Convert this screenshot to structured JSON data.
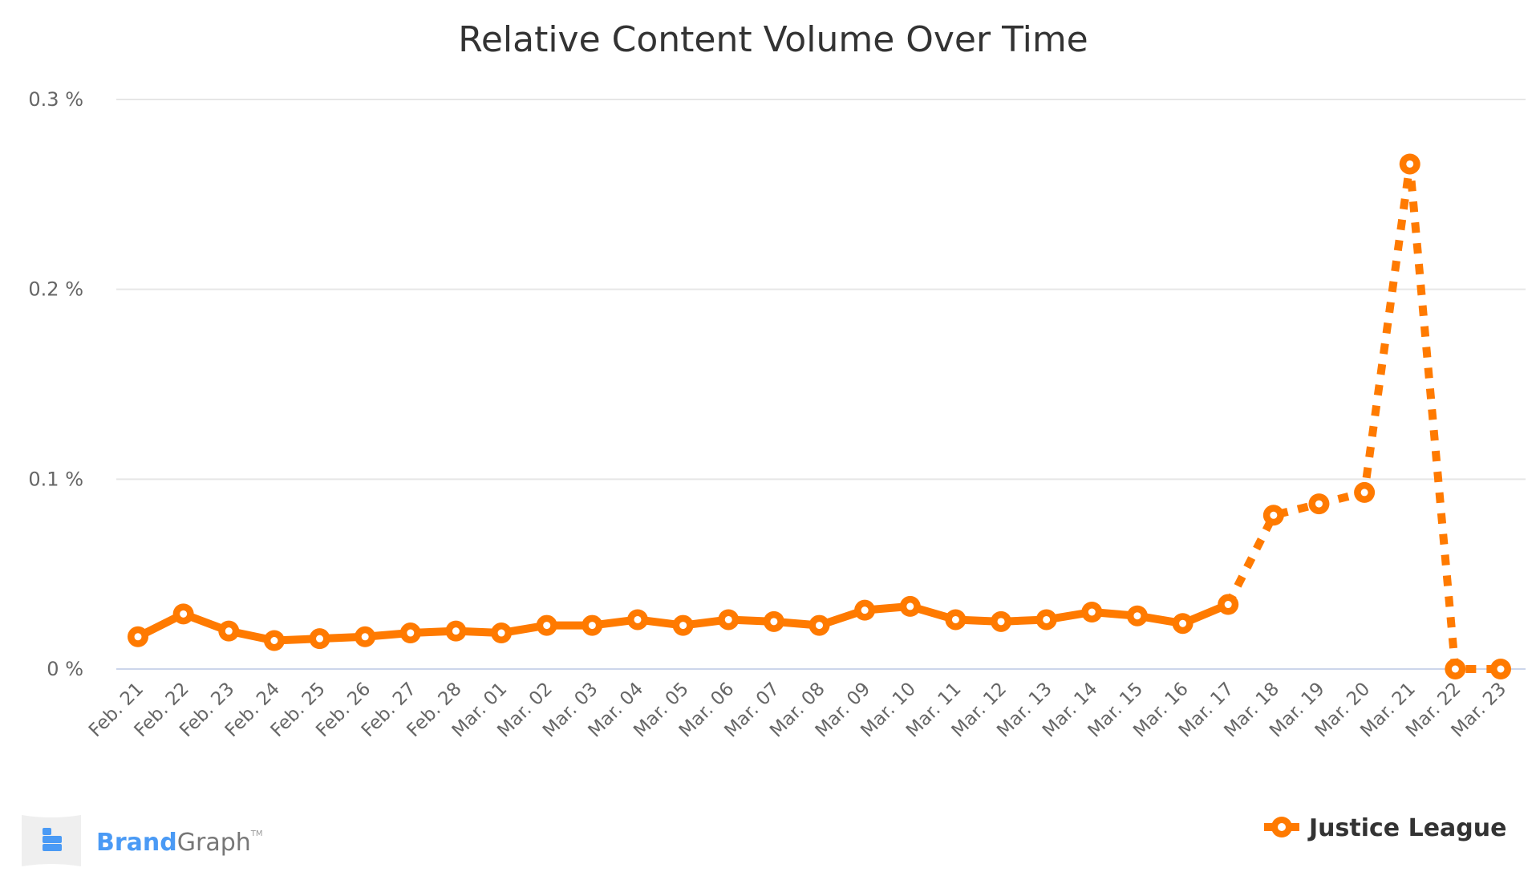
{
  "chart_data": {
    "type": "line",
    "title": "Relative Content Volume Over Time",
    "xlabel": "",
    "ylabel": "",
    "ylim": [
      0,
      0.3
    ],
    "yticks": [
      "0 %",
      "0.1 %",
      "0.2 %",
      "0.3 %"
    ],
    "ytick_values": [
      0,
      0.1,
      0.2,
      0.3
    ],
    "grid": true,
    "legend": "bottom-right",
    "categories": [
      "Feb. 21",
      "Feb. 22",
      "Feb. 23",
      "Feb. 24",
      "Feb. 25",
      "Feb. 26",
      "Feb. 27",
      "Feb. 28",
      "Mar. 01",
      "Mar. 02",
      "Mar. 03",
      "Mar. 04",
      "Mar. 05",
      "Mar. 06",
      "Mar. 07",
      "Mar. 08",
      "Mar. 09",
      "Mar. 10",
      "Mar. 11",
      "Mar. 12",
      "Mar. 13",
      "Mar. 14",
      "Mar. 15",
      "Mar. 16",
      "Mar. 17",
      "Mar. 18",
      "Mar. 19",
      "Mar. 20",
      "Mar. 21",
      "Mar. 22",
      "Mar. 23"
    ],
    "series": [
      {
        "name": "Justice League",
        "color": "#ff7a00",
        "values": [
          0.017,
          0.029,
          0.02,
          0.015,
          0.016,
          0.017,
          0.019,
          0.02,
          0.019,
          0.023,
          0.023,
          0.026,
          0.023,
          0.026,
          0.025,
          0.023,
          0.031,
          0.033,
          0.026,
          0.025,
          0.026,
          0.03,
          0.028,
          0.024,
          0.034,
          0.081,
          0.087,
          0.093,
          0.266,
          0.0,
          0.0
        ],
        "dashed_from": "Mar. 17"
      }
    ]
  },
  "branding": {
    "logo_brand": "Brand",
    "logo_graph": "Graph",
    "logo_tm": "TM",
    "brand_color": "#4a9af5"
  }
}
